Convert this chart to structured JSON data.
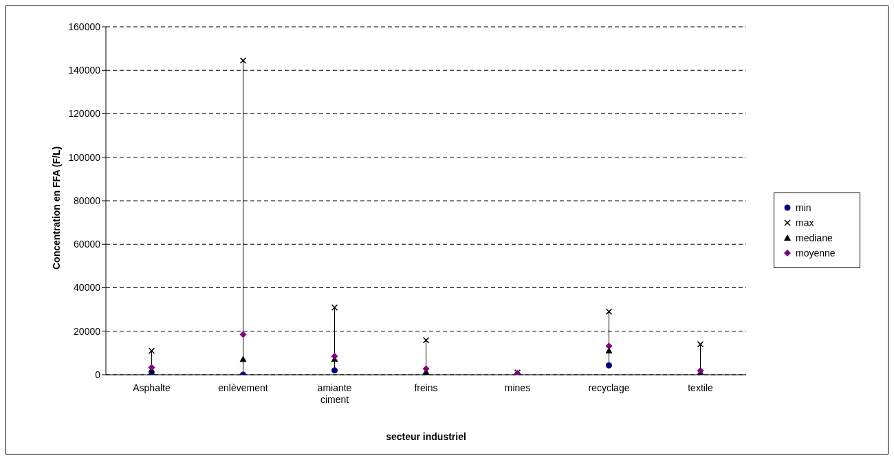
{
  "chart_data": {
    "type": "scatter",
    "xlabel": "secteur industriel",
    "ylabel": "Concentration en FFA (F/L)",
    "categories": [
      "Asphalte",
      "enlèvement",
      "amiante ciment",
      "freins",
      "mines",
      "recyclage",
      "textile"
    ],
    "series": [
      {
        "name": "min",
        "color": "#000080",
        "marker": "circle",
        "values": [
          0,
          0,
          2000,
          0,
          0,
          4300,
          0
        ]
      },
      {
        "name": "max",
        "color": "#000000",
        "marker": "cross",
        "values": [
          11000,
          144500,
          30900,
          15900,
          1000,
          29000,
          14000
        ]
      },
      {
        "name": "mediane",
        "color": "#000000",
        "marker": "triangle",
        "values": [
          2300,
          7200,
          7200,
          1300,
          null,
          11100,
          800
        ]
      },
      {
        "name": "moyenne",
        "color": "#800080",
        "marker": "diamond",
        "values": [
          3300,
          18500,
          8500,
          2800,
          600,
          13200,
          1900
        ]
      }
    ],
    "ylim": [
      0,
      160000
    ],
    "yticks": [
      0,
      20000,
      40000,
      60000,
      80000,
      100000,
      120000,
      140000,
      160000
    ],
    "grid": "y",
    "legend": "right"
  }
}
